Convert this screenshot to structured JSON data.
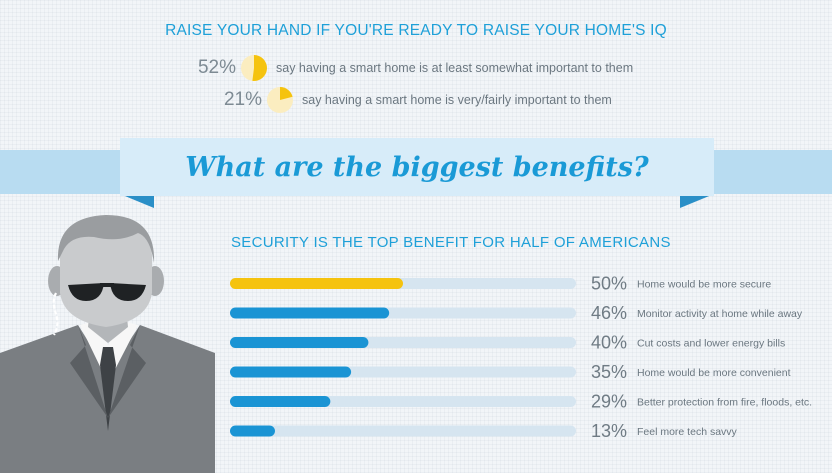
{
  "headline": "RAISE YOUR HAND IF YOU'RE READY TO RAISE YOUR HOME'S IQ",
  "stats": [
    {
      "value": 52,
      "label": "52%",
      "text": "say having a smart home is at least somewhat important to them"
    },
    {
      "value": 21,
      "label": "21%",
      "text": "say having a smart home is very/fairly important to them"
    }
  ],
  "banner_title": "What are the biggest benefits?",
  "colors": {
    "highlight": "#f5c30f",
    "bar": "#1a94d4",
    "track": "#d6e5f0",
    "pie_bg": "#fbedc0"
  },
  "chart_data": {
    "type": "bar",
    "orientation": "horizontal",
    "title": "SECURITY IS THE TOP BENEFIT FOR HALF OF AMERICANS",
    "categories": [
      "Home would be more secure",
      "Monitor activity at home while away",
      "Cut costs and lower energy bills",
      "Home would be more convenient",
      "Better protection from fire, floods, etc.",
      "Feel more tech savvy"
    ],
    "values": [
      50,
      46,
      40,
      35,
      29,
      13
    ],
    "value_labels": [
      "50%",
      "46%",
      "40%",
      "35%",
      "29%",
      "13%"
    ],
    "xlim": [
      0,
      100
    ],
    "highlight_index": 0,
    "grid": false,
    "legend": "none"
  }
}
